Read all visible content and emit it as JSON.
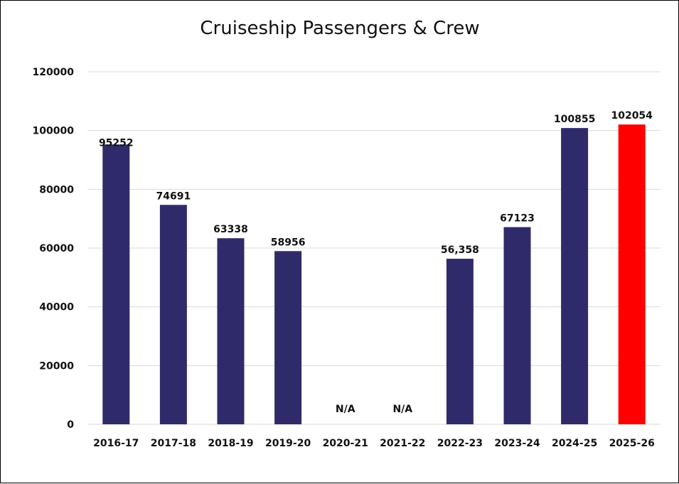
{
  "chart_data": {
    "type": "bar",
    "title": "Cruiseship Passengers & Crew",
    "xlabel": "",
    "ylabel": "",
    "ylim": [
      0,
      120000
    ],
    "yticks": [
      "0",
      "20000",
      "40000",
      "60000",
      "80000",
      "100000",
      "120000"
    ],
    "grid": true,
    "legend": "none",
    "categories": [
      "2016-17",
      "2017-18",
      "2018-19",
      "2019-20",
      "2020-21",
      "2021-22",
      "2022-23",
      "2023-24",
      "2024-25",
      "2025-26"
    ],
    "values": [
      95252,
      74691,
      63338,
      58956,
      null,
      null,
      56358,
      67123,
      100855,
      102054
    ],
    "data_labels": [
      "95252",
      "74691",
      "63338",
      "58956",
      "N/A",
      "N/A",
      "56,358",
      "67123",
      "100855",
      "102054"
    ],
    "colors": [
      "#2f2b6b",
      "#2f2b6b",
      "#2f2b6b",
      "#2f2b6b",
      "#2f2b6b",
      "#2f2b6b",
      "#2f2b6b",
      "#2f2b6b",
      "#2f2b6b",
      "#ff0000"
    ]
  }
}
